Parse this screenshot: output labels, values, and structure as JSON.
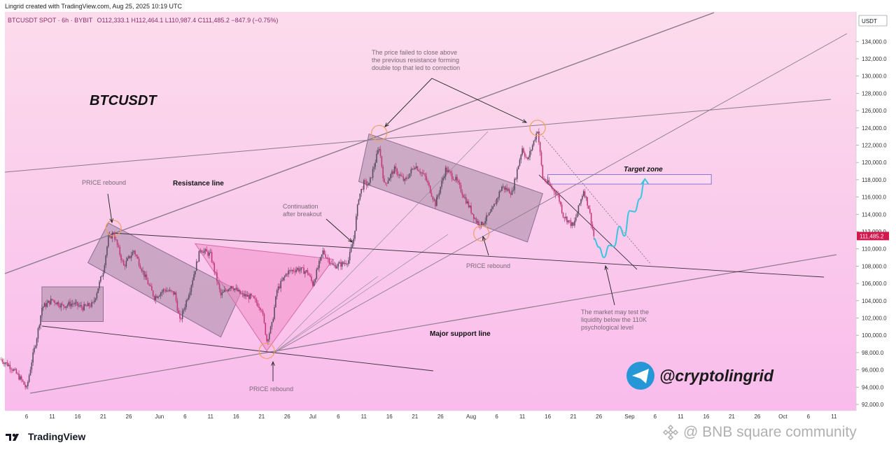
{
  "header": {
    "created_by": "Lingrid created with TradingView.com, Aug 25, 2025 10:19 UTC",
    "symbol_line": "BTCUSDT SPOT · 6h · BYBIT",
    "ohlc": "O112,333.1  H112,464.1  L110,987.4  C111,485.2  −847.9 (−0.75%)"
  },
  "footer": {
    "brand": "TradingView",
    "watermark": "@ BNB square community"
  },
  "chart_data": {
    "type": "candlestick",
    "symbol": "BTCUSDT",
    "title": "BTCUSDT",
    "currency": "USDT",
    "current_price": "111,485.2",
    "ylim": [
      91000,
      136000
    ],
    "y_ticks": [
      92000,
      94000,
      96000,
      98000,
      100000,
      102000,
      104000,
      106000,
      108000,
      110000,
      112000,
      114000,
      116000,
      118000,
      120000,
      122000,
      124000,
      126000,
      128000,
      130000,
      132000,
      134000
    ],
    "y_tick_labels": [
      "92,000.0",
      "94,000.0",
      "96,000.0",
      "98,000.0",
      "100,000.0",
      "102,000.0",
      "104,000.0",
      "106,000.0",
      "108,000.0",
      "110,000.0",
      "112,000.0",
      "114,000.0",
      "116,000.0",
      "118,000.0",
      "120,000.0",
      "122,000.0",
      "124,000.0",
      "126,000.0",
      "128,000.0",
      "130,000.0",
      "132,000.0",
      "134,000.0"
    ],
    "x_ticks": [
      {
        "label": "6",
        "date": "2025-05-06"
      },
      {
        "label": "11",
        "date": "2025-05-11"
      },
      {
        "label": "16",
        "date": "2025-05-16"
      },
      {
        "label": "21",
        "date": "2025-05-21"
      },
      {
        "label": "26",
        "date": "2025-05-26"
      },
      {
        "label": "Jun",
        "date": "2025-06-01"
      },
      {
        "label": "6",
        "date": "2025-06-06"
      },
      {
        "label": "11",
        "date": "2025-06-11"
      },
      {
        "label": "16",
        "date": "2025-06-16"
      },
      {
        "label": "21",
        "date": "2025-06-21"
      },
      {
        "label": "26",
        "date": "2025-06-26"
      },
      {
        "label": "Jul",
        "date": "2025-07-01"
      },
      {
        "label": "6",
        "date": "2025-07-06"
      },
      {
        "label": "11",
        "date": "2025-07-11"
      },
      {
        "label": "16",
        "date": "2025-07-16"
      },
      {
        "label": "21",
        "date": "2025-07-21"
      },
      {
        "label": "26",
        "date": "2025-07-26"
      },
      {
        "label": "Aug",
        "date": "2025-08-01"
      },
      {
        "label": "6",
        "date": "2025-08-06"
      },
      {
        "label": "11",
        "date": "2025-08-11"
      },
      {
        "label": "16",
        "date": "2025-08-16"
      },
      {
        "label": "21",
        "date": "2025-08-21"
      },
      {
        "label": "26",
        "date": "2025-08-26"
      },
      {
        "label": "Sep",
        "date": "2025-09-01"
      },
      {
        "label": "6",
        "date": "2025-09-06"
      },
      {
        "label": "11",
        "date": "2025-09-11"
      },
      {
        "label": "16",
        "date": "2025-09-16"
      },
      {
        "label": "21",
        "date": "2025-09-21"
      },
      {
        "label": "26",
        "date": "2025-09-26"
      },
      {
        "label": "Oct",
        "date": "2025-10-01"
      },
      {
        "label": "6",
        "date": "2025-10-06"
      },
      {
        "label": "11",
        "date": "2025-10-11"
      }
    ],
    "price_path": [
      [
        "2025-05-01",
        97200
      ],
      [
        "2025-05-03",
        96300
      ],
      [
        "2025-05-05",
        94800
      ],
      [
        "2025-05-06",
        93800
      ],
      [
        "2025-05-07",
        97000
      ],
      [
        "2025-05-08",
        99800
      ],
      [
        "2025-05-09",
        103200
      ],
      [
        "2025-05-11",
        104100
      ],
      [
        "2025-05-13",
        103400
      ],
      [
        "2025-05-15",
        103700
      ],
      [
        "2025-05-17",
        103200
      ],
      [
        "2025-05-19",
        103600
      ],
      [
        "2025-05-21",
        107500
      ],
      [
        "2025-05-22",
        111200
      ],
      [
        "2025-05-23",
        111800
      ],
      [
        "2025-05-25",
        108000
      ],
      [
        "2025-05-27",
        109800
      ],
      [
        "2025-05-29",
        107000
      ],
      [
        "2025-05-31",
        104400
      ],
      [
        "2025-06-02",
        105300
      ],
      [
        "2025-06-04",
        104800
      ],
      [
        "2025-06-05",
        101600
      ],
      [
        "2025-06-07",
        105400
      ],
      [
        "2025-06-09",
        110000
      ],
      [
        "2025-06-11",
        109300
      ],
      [
        "2025-06-13",
        104600
      ],
      [
        "2025-06-15",
        105800
      ],
      [
        "2025-06-17",
        104700
      ],
      [
        "2025-06-19",
        104400
      ],
      [
        "2025-06-21",
        103100
      ],
      [
        "2025-06-22",
        99400
      ],
      [
        "2025-06-23",
        101200
      ],
      [
        "2025-06-24",
        105200
      ],
      [
        "2025-06-26",
        107300
      ],
      [
        "2025-06-28",
        107700
      ],
      [
        "2025-06-30",
        107300
      ],
      [
        "2025-07-01",
        105900
      ],
      [
        "2025-07-03",
        109700
      ],
      [
        "2025-07-05",
        108000
      ],
      [
        "2025-07-07",
        108300
      ],
      [
        "2025-07-08",
        108700
      ],
      [
        "2025-07-09",
        111200
      ],
      [
        "2025-07-10",
        116000
      ],
      [
        "2025-07-11",
        117600
      ],
      [
        "2025-07-12",
        117400
      ],
      [
        "2025-07-14",
        121800
      ],
      [
        "2025-07-15",
        117400
      ],
      [
        "2025-07-17",
        119200
      ],
      [
        "2025-07-19",
        117800
      ],
      [
        "2025-07-21",
        119700
      ],
      [
        "2025-07-23",
        118300
      ],
      [
        "2025-07-25",
        115200
      ],
      [
        "2025-07-27",
        119200
      ],
      [
        "2025-07-29",
        118000
      ],
      [
        "2025-07-31",
        115600
      ],
      [
        "2025-08-02",
        113200
      ],
      [
        "2025-08-03",
        112800
      ],
      [
        "2025-08-05",
        114300
      ],
      [
        "2025-08-07",
        117200
      ],
      [
        "2025-08-09",
        116500
      ],
      [
        "2025-08-11",
        121700
      ],
      [
        "2025-08-12",
        120200
      ],
      [
        "2025-08-14",
        123800
      ],
      [
        "2025-08-15",
        118200
      ],
      [
        "2025-08-16",
        117600
      ],
      [
        "2025-08-18",
        116200
      ],
      [
        "2025-08-19",
        113900
      ],
      [
        "2025-08-21",
        112600
      ],
      [
        "2025-08-23",
        116800
      ],
      [
        "2025-08-24",
        114800
      ],
      [
        "2025-08-25",
        111485.2
      ]
    ],
    "projected_path": [
      [
        "2025-08-25",
        111200
      ],
      [
        "2025-08-26",
        110200
      ],
      [
        "2025-08-27",
        109000
      ],
      [
        "2025-08-28",
        110400
      ],
      [
        "2025-08-29",
        110300
      ],
      [
        "2025-08-30",
        112600
      ],
      [
        "2025-08-31",
        111500
      ],
      [
        "2025-09-01",
        114400
      ],
      [
        "2025-09-02",
        114300
      ],
      [
        "2025-09-03",
        115800
      ],
      [
        "2025-09-04",
        118000
      ]
    ],
    "annotations": {
      "resistance_line": "Resistance line",
      "major_support_line": "Major support line",
      "target_zone": "Target zone",
      "price_rebound": "PRICE rebound",
      "continuation": "Continuation\nafter breakout",
      "double_top": "The price failed to close above\nthe previous resistance forming\ndouble top that led to correction",
      "liquidity_test": "The market may test the\nliquidity below the 110K\npsychological level",
      "brand_tag": "@cryptolingrid"
    },
    "target_zone_range": [
      117500,
      118600
    ],
    "colors": {
      "background_top": "#fcdcec",
      "background_bottom": "#f9bcec",
      "bull_candle": "#5a4d63",
      "bear_candle": "#c13a78",
      "channel_fill": "#a58ba6",
      "triangle_fill": "#f28cc6",
      "projection": "#37c7de",
      "current_price_tag": "#d4174d",
      "telegram": "#2697d6"
    }
  }
}
